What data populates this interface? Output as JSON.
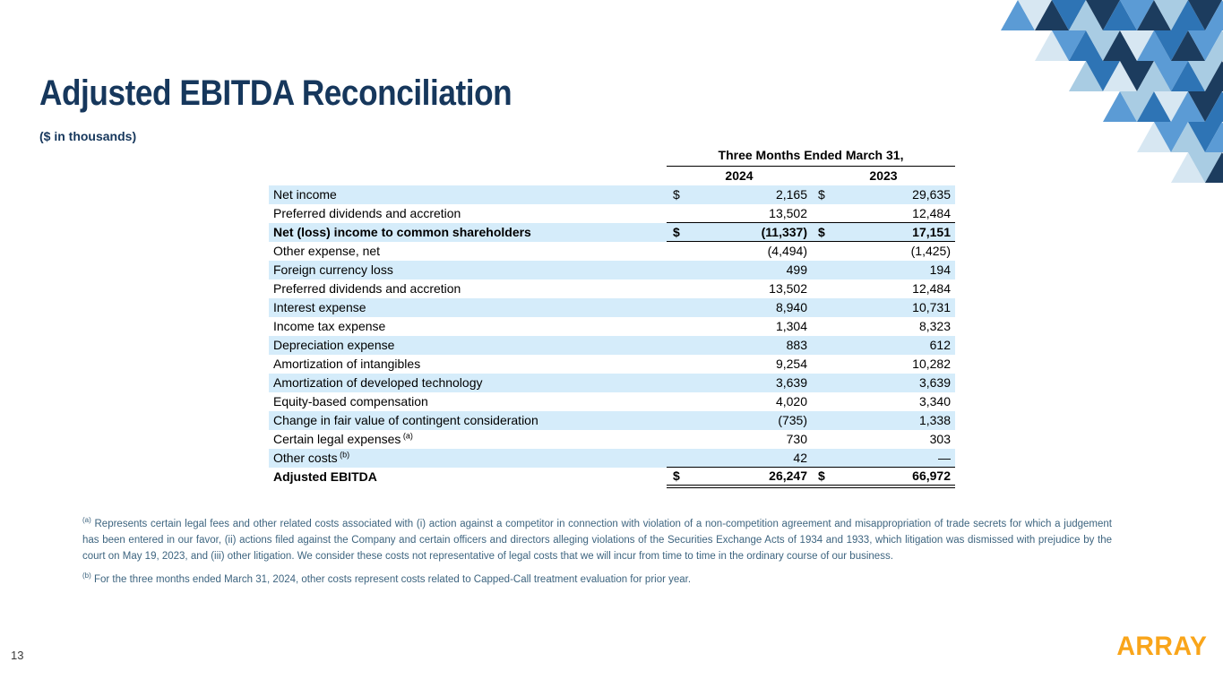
{
  "slide": {
    "title": "Adjusted EBITDA Reconciliation",
    "subtitle": "($ in thousands)",
    "page_number": "13",
    "logo_text": "ARRAY"
  },
  "table": {
    "group_header": "Three Months Ended March 31,",
    "columns": [
      "2024",
      "2023"
    ],
    "rows": [
      {
        "label": "Net income",
        "d1": "$",
        "v1": "2,165",
        "d2": "$",
        "v2": "29,635",
        "shaded": true
      },
      {
        "label": "Preferred dividends and accretion",
        "d1": "",
        "v1": "13,502",
        "d2": "",
        "v2": "12,484"
      },
      {
        "label": "Net (loss) income to common shareholders",
        "d1": "$",
        "v1": "(11,337)",
        "d2": "$",
        "v2": "17,151",
        "bold": true,
        "shaded": true,
        "style": "subtotal"
      },
      {
        "label": "Other expense, net",
        "d1": "",
        "v1": "(4,494)",
        "d2": "",
        "v2": "(1,425)"
      },
      {
        "label": "Foreign currency loss",
        "d1": "",
        "v1": "499",
        "d2": "",
        "v2": "194",
        "shaded": true
      },
      {
        "label": "Preferred dividends and accretion",
        "d1": "",
        "v1": "13,502",
        "d2": "",
        "v2": "12,484"
      },
      {
        "label": "Interest expense",
        "d1": "",
        "v1": "8,940",
        "d2": "",
        "v2": "10,731",
        "shaded": true
      },
      {
        "label": "Income tax expense",
        "d1": "",
        "v1": "1,304",
        "d2": "",
        "v2": "8,323"
      },
      {
        "label": "Depreciation expense",
        "d1": "",
        "v1": "883",
        "d2": "",
        "v2": "612",
        "shaded": true
      },
      {
        "label": "Amortization of intangibles",
        "d1": "",
        "v1": "9,254",
        "d2": "",
        "v2": "10,282"
      },
      {
        "label": "Amortization of developed technology",
        "d1": "",
        "v1": "3,639",
        "d2": "",
        "v2": "3,639",
        "shaded": true
      },
      {
        "label": "Equity-based compensation",
        "d1": "",
        "v1": "4,020",
        "d2": "",
        "v2": "3,340"
      },
      {
        "label": "Change in fair value of contingent consideration",
        "d1": "",
        "v1": "(735)",
        "d2": "",
        "v2": "1,338",
        "shaded": true
      },
      {
        "label": "Certain legal expenses",
        "marker": "(a)",
        "d1": "",
        "v1": "730",
        "d2": "",
        "v2": "303"
      },
      {
        "label": "Other costs",
        "marker": "(b)",
        "d1": "",
        "v1": "42",
        "d2": "",
        "v2": "—",
        "shaded": true
      },
      {
        "label": "Adjusted EBITDA",
        "d1": "$",
        "v1": "26,247",
        "d2": "$",
        "v2": "66,972",
        "bold": true,
        "style": "total"
      }
    ]
  },
  "footnotes": [
    {
      "marker": "(a)",
      "text": "Represents certain legal fees and other related costs associated with (i) action against a competitor in connection with violation of a non-competition agreement and misappropriation of trade secrets for which a judgement has been entered in our favor, (ii) actions filed against the Company and certain officers and directors alleging violations of the Securities Exchange Acts of 1934 and 1933, which litigation was dismissed with prejudice by the court on May 19, 2023, and (iii) other litigation. We consider these costs not representative of legal costs that we will incur from time to time in the ordinary course of our business."
    },
    {
      "marker": "(b)",
      "text": "For the three months ended March 31, 2024, other costs represent costs related to Capped-Call treatment evaluation for prior year."
    }
  ],
  "colors": {
    "title_navy": "#16375C",
    "row_shade": "#D5ECFA",
    "footnote_blue": "#3D647F",
    "logo_orange": "#F9A51A"
  }
}
